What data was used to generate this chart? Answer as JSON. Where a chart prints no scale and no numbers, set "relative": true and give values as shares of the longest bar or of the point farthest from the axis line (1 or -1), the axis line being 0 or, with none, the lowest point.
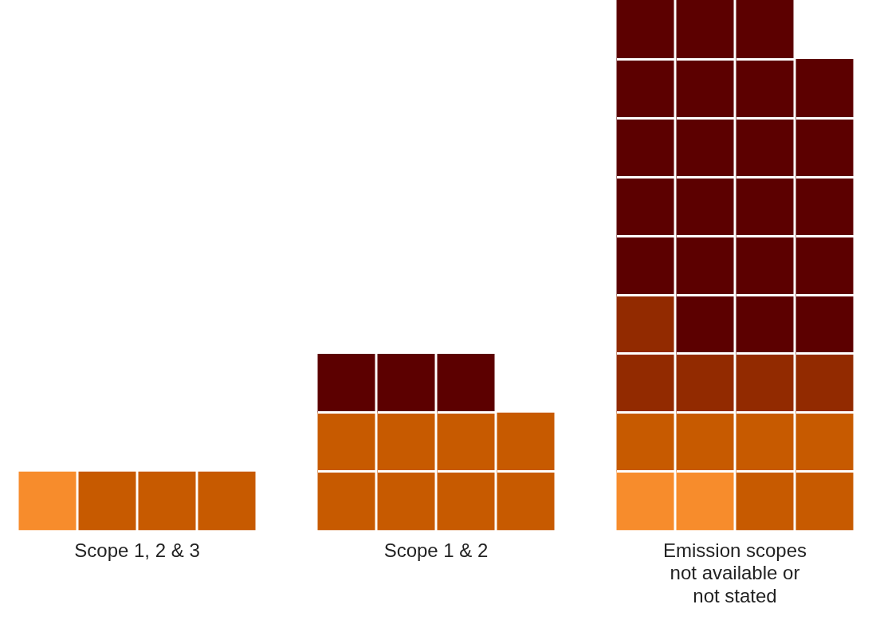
{
  "chart_data": {
    "type": "bar",
    "stacked": true,
    "relative": true,
    "categories": [
      null,
      "Scope 1, 2 & 3",
      null,
      null,
      null,
      null,
      "Scope 1 & 2",
      null,
      null,
      null,
      null,
      "Emission scopes not available or not stated",
      null,
      null
    ],
    "series": [
      {
        "color": "#f78c2c",
        "values": [
          0.111,
          null,
          null,
          null,
          null,
          null,
          null,
          null,
          null,
          null,
          0.111,
          0.111,
          null,
          null
        ]
      },
      {
        "color": "#c75a00",
        "values": [
          null,
          0.111,
          0.111,
          0.111,
          null,
          0.222,
          0.222,
          0.222,
          0.222,
          null,
          0.111,
          0.111,
          0.222,
          0.222
        ]
      },
      {
        "color": "#922a00",
        "values": [
          null,
          null,
          null,
          null,
          null,
          null,
          null,
          null,
          null,
          null,
          0.222,
          0.111,
          0.111,
          0.111
        ]
      },
      {
        "color": "#5c0000",
        "values": [
          null,
          null,
          null,
          null,
          null,
          0.111,
          0.111,
          0.111,
          null,
          null,
          0.556,
          0.667,
          0.667,
          0.556
        ]
      }
    ],
    "legend": false,
    "grid": false
  }
}
